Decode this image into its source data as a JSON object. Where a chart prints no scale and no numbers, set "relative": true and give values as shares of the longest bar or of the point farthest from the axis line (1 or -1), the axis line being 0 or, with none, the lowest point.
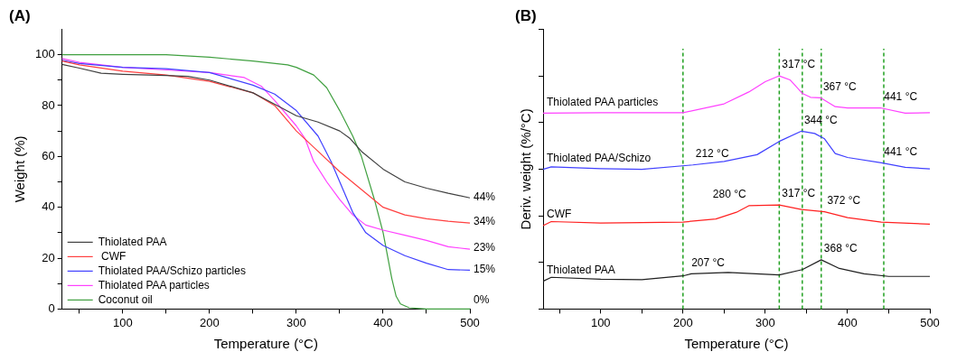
{
  "chart_data": [
    {
      "type": "line",
      "title": "(A)",
      "xlabel": "Temperature (°C)",
      "ylabel": "Weight (%)",
      "xlim": [
        30,
        500
      ],
      "ylim": [
        0,
        110
      ],
      "xticks": [
        {
          "value": 50,
          "label": null
        },
        100,
        {
          "value": 150,
          "label": null
        },
        200,
        {
          "value": 250,
          "label": null
        },
        300,
        {
          "value": 350,
          "label": null
        },
        400,
        {
          "value": 450,
          "label": null
        },
        500
      ],
      "yticks": [
        0,
        {
          "value": 10,
          "label": null
        },
        20,
        {
          "value": 30,
          "label": null
        },
        40,
        {
          "value": 50,
          "label": null
        },
        60,
        {
          "value": 70,
          "label": null
        },
        80,
        {
          "value": 90,
          "label": null
        },
        100
      ],
      "legend": "bottom left",
      "marker": "none",
      "line_style": "solid",
      "series": [
        {
          "name": "Thiolated PAA",
          "color": "#404040",
          "x": [
            30,
            50,
            75,
            100,
            150,
            175,
            200,
            250,
            275,
            300,
            325,
            350,
            362,
            375,
            400,
            425,
            450,
            475,
            500
          ],
          "values": [
            96.2,
            94.7,
            92.7,
            92.3,
            91.8,
            91.5,
            90,
            85,
            80.5,
            76,
            73.5,
            70,
            67,
            62,
            55,
            50,
            47.5,
            45.5,
            43.7
          ]
        },
        {
          "name": " CWF",
          "color": "#ff4040",
          "x": [
            30,
            50,
            100,
            150,
            200,
            250,
            275,
            300,
            325,
            350,
            375,
            400,
            425,
            450,
            475,
            500
          ],
          "values": [
            97.5,
            96,
            93.5,
            92,
            89.5,
            85,
            80,
            70,
            62,
            54,
            47,
            40,
            37,
            35.5,
            34.5,
            33.8
          ]
        },
        {
          "name": "Thiolated PAA/Schizo particles",
          "color": "#4040ff",
          "x": [
            30,
            50,
            100,
            150,
            200,
            250,
            275,
            300,
            325,
            340,
            350,
            365,
            380,
            400,
            425,
            450,
            475,
            500
          ],
          "values": [
            97.8,
            96.5,
            95,
            94.5,
            93,
            88,
            84.5,
            78,
            68,
            58,
            50,
            38,
            30,
            25,
            21,
            18,
            15.5,
            15.3
          ]
        },
        {
          "name": "Thiolated PAA particles",
          "color": "#ff40ff",
          "x": [
            30,
            50,
            100,
            150,
            200,
            240,
            260,
            275,
            300,
            310,
            320,
            335,
            350,
            365,
            380,
            400,
            425,
            450,
            475,
            500
          ],
          "values": [
            98.5,
            97,
            95,
            94,
            93,
            91,
            87.5,
            82,
            72,
            67,
            58,
            50,
            43,
            37,
            33,
            31,
            29,
            27,
            24.5,
            23.5
          ]
        },
        {
          "name": "Coconut oil",
          "color": "#40a040",
          "x": [
            30,
            100,
            150,
            200,
            250,
            290,
            300,
            320,
            335,
            350,
            365,
            375,
            390,
            400,
            410,
            415,
            420,
            430,
            450,
            500
          ],
          "values": [
            100,
            100,
            100,
            99,
            97.5,
            96,
            95,
            92,
            87,
            78,
            68,
            60,
            43,
            30,
            12,
            5,
            2,
            0.5,
            0,
            0
          ]
        }
      ],
      "annotations": [
        {
          "text": "44%",
          "x": 500,
          "y": 43.7
        },
        {
          "text": "34%",
          "x": 500,
          "y": 33.8
        },
        {
          "text": "23%",
          "x": 500,
          "y": 23.5
        },
        {
          "text": "15%",
          "x": 500,
          "y": 15.3
        },
        {
          "text": "0%",
          "x": 500,
          "y": 0
        }
      ]
    },
    {
      "type": "line",
      "title": "(B)",
      "xlabel": "Temperature (°C)",
      "ylabel": "Deriv. weight (%/°C)",
      "xlim": [
        30,
        500
      ],
      "relative": true,
      "xticks": [
        {
          "value": 50,
          "label": null
        },
        100,
        {
          "value": 150,
          "label": null
        },
        200,
        {
          "value": 250,
          "label": null
        },
        300,
        {
          "value": 350,
          "label": null
        },
        400,
        {
          "value": 450,
          "label": null
        },
        500
      ],
      "legend": false,
      "marker": "none",
      "line_style": "solid",
      "series": [
        {
          "name": "Thiolated PAA particles",
          "color": "#ff40ff",
          "x": [
            30,
            100,
            200,
            250,
            280,
            300,
            317,
            330,
            345,
            355,
            367,
            385,
            400,
            441,
            470,
            500
          ],
          "values": [
            0.84,
            0.842,
            0.842,
            0.88,
            0.931,
            0.975,
            1,
            0.983,
            0.925,
            0.908,
            0.906,
            0.868,
            0.862,
            0.862,
            0.84,
            0.842
          ]
        },
        {
          "name": "Thiolated PAA/Schizo",
          "color": "#4040ff",
          "x": [
            30,
            40,
            100,
            150,
            212,
            250,
            290,
            317,
            344,
            360,
            372,
            385,
            400,
            441,
            470,
            500
          ],
          "values": [
            0.599,
            0.61,
            0.602,
            0.599,
            0.618,
            0.633,
            0.662,
            0.719,
            0.763,
            0.753,
            0.73,
            0.667,
            0.65,
            0.627,
            0.608,
            0.601
          ]
        },
        {
          "name": "CWF",
          "color": "#ff2020",
          "x": [
            30,
            40,
            100,
            200,
            240,
            265,
            280,
            317,
            344,
            372,
            400,
            441,
            500
          ],
          "values": [
            0.358,
            0.375,
            0.369,
            0.373,
            0.386,
            0.415,
            0.443,
            0.446,
            0.427,
            0.417,
            0.392,
            0.373,
            0.364
          ]
        },
        {
          "name": "Thiolated PAA",
          "color": "#202020",
          "x": [
            30,
            40,
            100,
            150,
            200,
            210,
            255,
            300,
            317,
            345,
            368,
            390,
            420,
            450,
            500
          ],
          "values": [
            0.119,
            0.136,
            0.128,
            0.126,
            0.142,
            0.151,
            0.157,
            0.149,
            0.146,
            0.169,
            0.211,
            0.174,
            0.151,
            0.14,
            0.14
          ]
        }
      ],
      "ref_lines": [
        {
          "axis": "x",
          "value": 200,
          "color": "#20a020",
          "line_style": "dashed"
        },
        {
          "axis": "x",
          "value": 317,
          "color": "#20a020",
          "line_style": "dashed"
        },
        {
          "axis": "x",
          "value": 345,
          "color": "#20a020",
          "line_style": "dashed"
        },
        {
          "axis": "x",
          "value": 368,
          "color": "#20a020",
          "line_style": "dashed"
        },
        {
          "axis": "x",
          "value": 444,
          "color": "#20a020",
          "line_style": "dashed"
        }
      ],
      "annotations": [
        {
          "text": "317 °C",
          "x": 317,
          "y": 1
        },
        {
          "text": "367 °C",
          "x": 367,
          "y": 0.906
        },
        {
          "text": "441 °C",
          "x": 441,
          "y": 0.862
        },
        {
          "text": "344 °C",
          "x": 344,
          "y": 0.763
        },
        {
          "text": "212 °C",
          "x": 212,
          "y": 0.618
        },
        {
          "text": "441 °C",
          "x": 441,
          "y": 0.627
        },
        {
          "text": "280 °C",
          "x": 280,
          "y": 0.443
        },
        {
          "text": "317 °C",
          "x": 317,
          "y": 0.446
        },
        {
          "text": "372 °C",
          "x": 372,
          "y": 0.417
        },
        {
          "text": "207 °C",
          "x": 207,
          "y": 0.151
        },
        {
          "text": "368 °C",
          "x": 368,
          "y": 0.211
        }
      ]
    }
  ]
}
